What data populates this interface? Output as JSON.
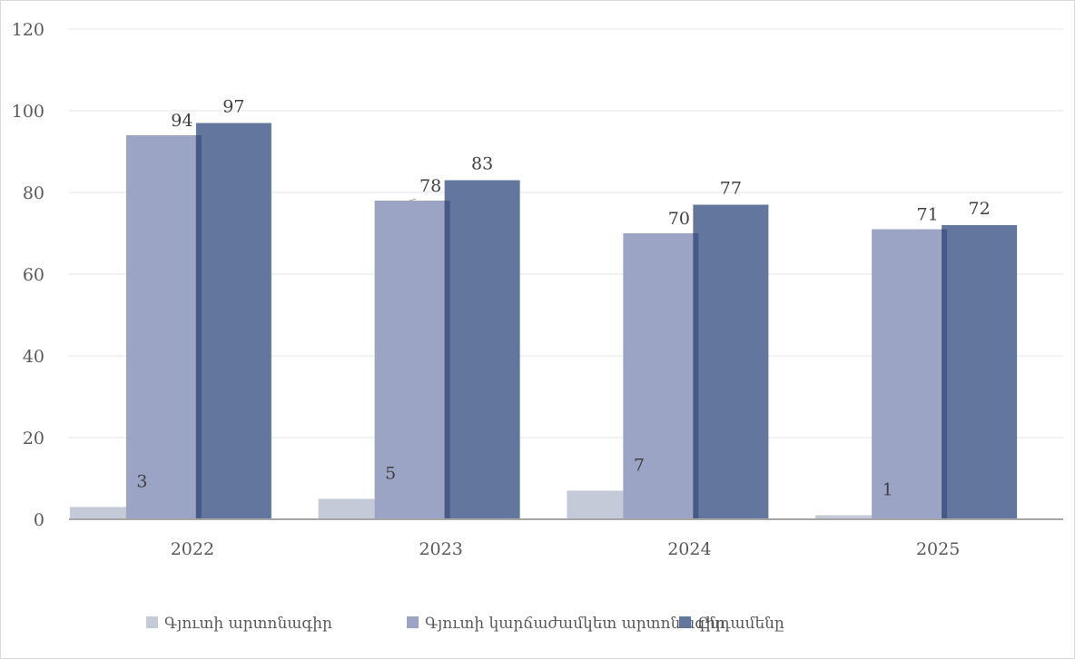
{
  "chart_data": {
    "type": "bar",
    "title": "",
    "xlabel": "",
    "ylabel": "",
    "categories": [
      "2022",
      "2023",
      "2024",
      "2025"
    ],
    "series": [
      {
        "name": "Գյուտի արտոնագիր",
        "values": [
          3,
          5,
          7,
          1
        ],
        "color": "#c5cad9"
      },
      {
        "name": "Գյուտի կարճաժամկետ արտոնագիր",
        "values": [
          94,
          78,
          70,
          71
        ],
        "color": "#9ba4c4"
      },
      {
        "name": "Ընդամենը",
        "values": [
          97,
          83,
          77,
          72
        ],
        "color": "#63769d"
      }
    ],
    "ylim": [
      0,
      120
    ],
    "yticks": [
      0,
      20,
      40,
      60,
      80,
      100,
      120
    ],
    "grid": true,
    "legend": "bottom",
    "overlap_color": "#465a88"
  }
}
